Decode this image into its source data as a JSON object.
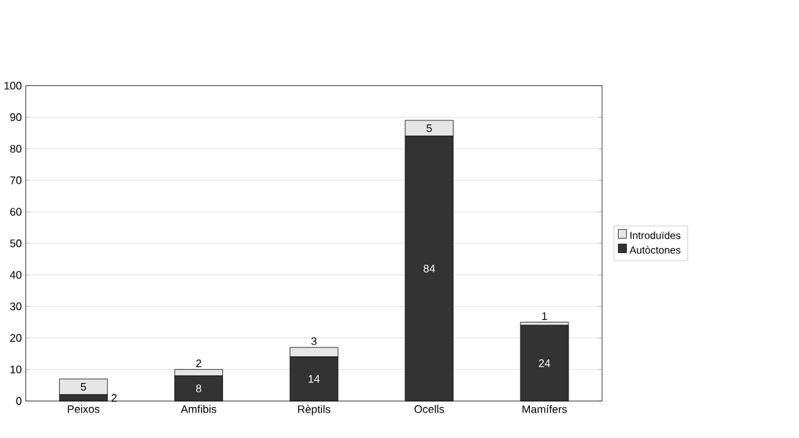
{
  "chart_data": {
    "type": "bar",
    "stacked": true,
    "categories": [
      "Peixos",
      "Amfibis",
      "Rèptils",
      "Ocells",
      "Mamífers"
    ],
    "series": [
      {
        "name": "Autòctones",
        "color": "#333333",
        "values": [
          2,
          8,
          14,
          84,
          24
        ]
      },
      {
        "name": "Introduïdes",
        "color": "#e6e6e6",
        "values": [
          5,
          2,
          3,
          5,
          1
        ]
      }
    ],
    "ylim": [
      0,
      100
    ],
    "yticks": [
      0,
      10,
      20,
      30,
      40,
      50,
      60,
      70,
      80,
      90,
      100
    ],
    "grid": "y",
    "legend": "right",
    "data_labels": true
  }
}
